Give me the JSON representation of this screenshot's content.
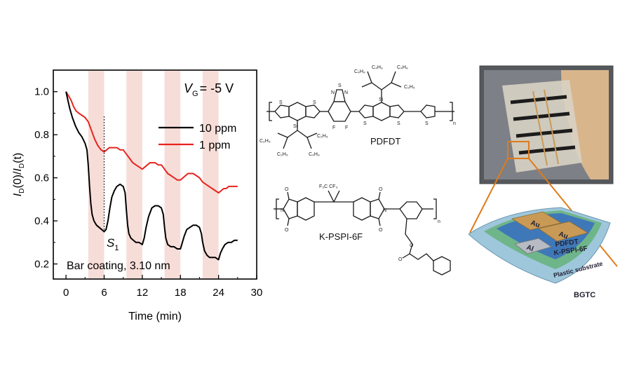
{
  "chart_data": {
    "type": "line",
    "title": "",
    "xlabel": "Time (min)",
    "ylabel_parts": {
      "main": "I",
      "sub1": "D",
      "mid": "(0)/",
      "main2": "I",
      "sub2": "D",
      "end": "(t)"
    },
    "xlim": [
      -2,
      30
    ],
    "ylim": [
      0.13,
      1.1
    ],
    "xticks": [
      0,
      6,
      12,
      18,
      24,
      30
    ],
    "yticks": [
      0.2,
      0.4,
      0.6,
      0.8,
      1.0
    ],
    "xtick_labels": [
      "0",
      "6",
      "12",
      "18",
      "24",
      "30"
    ],
    "ytick_labels": [
      "0.2",
      "0.4",
      "0.6",
      "0.8",
      "1.0"
    ],
    "grid": false,
    "legend_placement": "top-right",
    "shaded_intervals": [
      [
        3.5,
        6
      ],
      [
        9.5,
        12
      ],
      [
        15.5,
        18
      ],
      [
        21.5,
        24
      ]
    ],
    "annotations": {
      "gate_main": "V",
      "gate_sub": "G",
      "gate_rest": "= -5 V",
      "coating": "Bar coating, 3.10 nm",
      "marker_main": "S",
      "marker_sub": "1",
      "marker_x": 6
    },
    "series": [
      {
        "name": "10 ppm",
        "color": "#000000",
        "x": [
          0,
          0.3,
          0.6,
          1.0,
          1.5,
          2.0,
          2.5,
          3.0,
          3.3,
          3.5,
          3.7,
          3.9,
          4.1,
          4.4,
          4.8,
          5.2,
          5.6,
          6.0,
          6.3,
          6.6,
          6.9,
          7.2,
          7.6,
          8.0,
          8.5,
          9.0,
          9.3,
          9.5,
          9.7,
          9.9,
          10.2,
          10.6,
          11.0,
          11.5,
          12.0,
          12.3,
          12.6,
          13.0,
          13.5,
          14.0,
          14.5,
          15.0,
          15.3,
          15.5,
          15.7,
          16.0,
          16.5,
          17.0,
          17.5,
          18.0,
          18.3,
          18.6,
          19.0,
          19.5,
          20.0,
          20.5,
          21.0,
          21.3,
          21.5,
          21.8,
          22.2,
          22.6,
          23.0,
          23.5,
          24.0,
          24.3,
          24.6,
          25.0,
          25.5,
          26.0,
          26.5,
          27.0
        ],
        "y": [
          1.0,
          0.96,
          0.92,
          0.88,
          0.84,
          0.81,
          0.79,
          0.76,
          0.73,
          0.66,
          0.56,
          0.48,
          0.43,
          0.4,
          0.38,
          0.37,
          0.36,
          0.35,
          0.36,
          0.4,
          0.46,
          0.51,
          0.54,
          0.56,
          0.57,
          0.56,
          0.53,
          0.45,
          0.38,
          0.34,
          0.32,
          0.31,
          0.3,
          0.3,
          0.29,
          0.32,
          0.37,
          0.42,
          0.46,
          0.47,
          0.47,
          0.46,
          0.43,
          0.37,
          0.32,
          0.29,
          0.28,
          0.28,
          0.27,
          0.27,
          0.3,
          0.33,
          0.36,
          0.37,
          0.38,
          0.38,
          0.37,
          0.34,
          0.3,
          0.26,
          0.24,
          0.23,
          0.23,
          0.23,
          0.22,
          0.25,
          0.27,
          0.29,
          0.3,
          0.3,
          0.31,
          0.31
        ]
      },
      {
        "name": "1 ppm",
        "color": "#e8231f",
        "x": [
          0,
          0.4,
          0.8,
          1.2,
          1.6,
          2.0,
          2.5,
          3.0,
          3.5,
          4.0,
          4.5,
          5.0,
          5.5,
          6.0,
          6.4,
          6.8,
          7.2,
          7.6,
          8.0,
          8.5,
          9.0,
          9.5,
          10.0,
          10.5,
          11.0,
          11.5,
          12.0,
          12.4,
          12.8,
          13.2,
          13.6,
          14.0,
          14.5,
          15.0,
          15.5,
          16.0,
          16.5,
          17.0,
          17.5,
          18.0,
          18.4,
          18.8,
          19.2,
          19.6,
          20.0,
          20.5,
          21.0,
          21.5,
          22.0,
          22.5,
          23.0,
          23.5,
          24.0,
          24.4,
          24.8,
          25.2,
          25.6,
          26.0,
          26.5,
          27.0
        ],
        "y": [
          1.0,
          0.98,
          0.96,
          0.93,
          0.91,
          0.9,
          0.89,
          0.88,
          0.86,
          0.82,
          0.78,
          0.75,
          0.73,
          0.72,
          0.73,
          0.74,
          0.74,
          0.74,
          0.74,
          0.73,
          0.73,
          0.71,
          0.69,
          0.67,
          0.66,
          0.65,
          0.64,
          0.65,
          0.66,
          0.67,
          0.67,
          0.67,
          0.66,
          0.66,
          0.64,
          0.62,
          0.61,
          0.6,
          0.59,
          0.59,
          0.6,
          0.61,
          0.62,
          0.62,
          0.62,
          0.61,
          0.6,
          0.58,
          0.57,
          0.56,
          0.55,
          0.54,
          0.53,
          0.54,
          0.55,
          0.55,
          0.56,
          0.56,
          0.56,
          0.56
        ]
      }
    ]
  },
  "chemistry": {
    "polymer1_name": "PDFDT",
    "polymer2_name": "K-PSPI-6F",
    "subscript_n": "n",
    "atom_S": "S",
    "atom_N": "N",
    "atom_F": "F",
    "atom_Si": "Si",
    "atom_O": "O",
    "group_cf3": "F₃C  CF₃",
    "alkyl_groups": [
      "C₄H₉",
      "C₂H₅",
      "C₂H₅",
      "C₄H₉",
      "C₂H₅",
      "C₄H₉",
      "C₂H₅",
      "C₄H₉"
    ]
  },
  "device": {
    "label": "BGTC",
    "layers": {
      "electrode1": "Au",
      "electrode2": "Au",
      "gate": "Al",
      "semiconductor": "PDFDT",
      "dielectric": "K-PSPI-6F",
      "substrate": "Plastic substrate"
    },
    "colors": {
      "substrate": "#9ec7dc",
      "dielectric": "#6fb58a",
      "semiconductor": "#3f78b8",
      "gold": "#c99a55",
      "aluminum": "#b7bcc4",
      "frame": "#e07b1a"
    }
  }
}
